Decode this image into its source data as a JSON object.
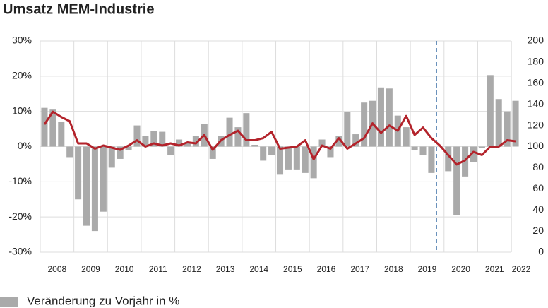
{
  "chart_data": {
    "type": "bar",
    "title": "Umsatz MEM-Industrie",
    "categories": [
      "2008",
      null,
      null,
      null,
      "2009",
      null,
      null,
      null,
      "2010",
      null,
      null,
      null,
      "2011",
      null,
      null,
      null,
      "2012",
      null,
      null,
      null,
      "2013",
      null,
      null,
      null,
      "2014",
      null,
      null,
      null,
      "2015",
      null,
      null,
      null,
      "2016",
      null,
      null,
      null,
      "2017",
      null,
      null,
      null,
      "2018",
      null,
      null,
      null,
      "2019",
      null,
      null,
      null,
      "2020",
      null,
      null,
      null,
      "2021",
      null,
      null,
      null,
      "2022"
    ],
    "series": [
      {
        "name": "Veränderung zu Vorjahr in %",
        "color": "#aaaaaa",
        "type": "bar",
        "values": [
          11,
          10.5,
          7,
          -3,
          -15,
          -22.5,
          -24,
          -18.5,
          -6,
          -3.5,
          -1,
          6,
          3,
          4.5,
          4.2,
          -2.5,
          2,
          1,
          3,
          6.5,
          -3.5,
          3,
          8.2,
          5.5,
          9.5,
          0.5,
          -4,
          -2.5,
          -8,
          -6.5,
          -6.5,
          -7.5,
          -9,
          2,
          -3,
          3,
          9.8,
          3.5,
          12.5,
          13,
          16.8,
          16.5,
          8.8,
          5.5,
          -1,
          -2.5,
          -7.5,
          0,
          -7,
          -19.5,
          -8.5,
          -4.5,
          -0.5,
          20.3,
          13.5,
          10,
          13
        ]
      },
      {
        "color": "#b3232b",
        "type": "line",
        "axis": "y2",
        "values": [
          121,
          133,
          128,
          124,
          103,
          103,
          98,
          101,
          99,
          97,
          101,
          106,
          100,
          103,
          101,
          103,
          101,
          104,
          103,
          111,
          97,
          106,
          111,
          115,
          106,
          106,
          108,
          114,
          98,
          99,
          100,
          106,
          88,
          101,
          98,
          108,
          98,
          103,
          108,
          122,
          113,
          120,
          115,
          129,
          111,
          118,
          108,
          101,
          92,
          83,
          87,
          95,
          92,
          100,
          100,
          106,
          105
        ]
      }
    ],
    "ylim": [
      -30,
      30
    ],
    "yticks": [
      {
        "value": -30,
        "label": "-30%"
      },
      {
        "value": -20,
        "label": "-20%"
      },
      {
        "value": -10,
        "label": "-10%"
      },
      {
        "value": 0,
        "label": "0%"
      },
      {
        "value": 10,
        "label": "10%"
      },
      {
        "value": 20,
        "label": "20%"
      },
      {
        "value": 30,
        "label": "30%"
      }
    ],
    "y2lim": [
      0,
      200
    ],
    "y2ticks": [
      0,
      20,
      40,
      60,
      80,
      100,
      120,
      140,
      160,
      180,
      200
    ],
    "grid": true
  }
}
